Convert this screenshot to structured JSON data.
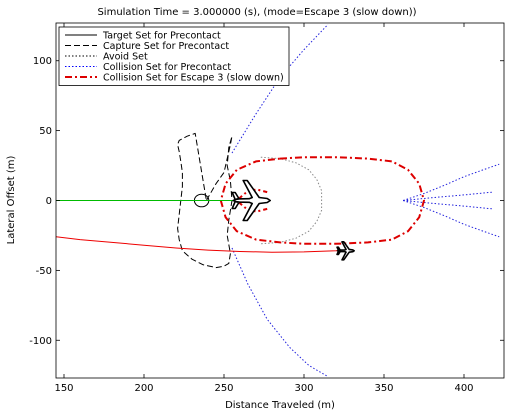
{
  "chart_data": {
    "type": "line",
    "title": "Simulation Time = 3.000000 (s), (mode=Escape 3 (slow down))",
    "xlabel": "Distance Traveled (m)",
    "ylabel": "Lateral Offset (m)",
    "xlim": [
      145,
      425
    ],
    "ylim": [
      -127,
      127
    ],
    "xticks": [
      150,
      200,
      250,
      300,
      350,
      400
    ],
    "yticks": [
      -100,
      -50,
      0,
      50,
      100
    ],
    "grid": false,
    "legend_position": "top-left",
    "legend": [
      {
        "label": "Target Set for Precontact",
        "style": "solid",
        "color": "#000000"
      },
      {
        "label": "Capture Set for Precontact",
        "style": "dashed",
        "color": "#000000"
      },
      {
        "label": "Avoid Set",
        "style": "dotted",
        "color": "#000000"
      },
      {
        "label": "Collision Set for Precontact",
        "style": "dotted",
        "color": "#0000ff"
      },
      {
        "label": "Collision Set for Escape 3 (slow down)",
        "style": "dashdot",
        "color": "#dd0000"
      }
    ],
    "series": [
      {
        "name": "Target Set for Precontact",
        "shape": "circle",
        "center": [
          236,
          0
        ],
        "radius": 4.5,
        "color": "#000000"
      },
      {
        "name": "Capture Set for Precontact",
        "color": "#000000",
        "x": [
          239,
          245,
          250,
          252,
          254,
          255,
          253,
          252,
          254,
          255,
          253,
          252,
          254,
          253,
          250,
          245,
          237,
          230,
          224,
          222,
          221,
          222,
          223,
          224,
          224,
          223,
          222,
          221,
          222,
          227,
          232,
          239
        ],
        "y": [
          0,
          12,
          20,
          30,
          40,
          46,
          38,
          25,
          14,
          0,
          -14,
          -25,
          -38,
          -45,
          -47,
          -48,
          -46,
          -42,
          -36,
          -28,
          -20,
          -10,
          0,
          10,
          20,
          28,
          35,
          40,
          43,
          46,
          48,
          0
        ]
      },
      {
        "name": "Avoid Set",
        "color": "#888888",
        "x": [
          273,
          285,
          295,
          303,
          308,
          311,
          311,
          308,
          303,
          295,
          285,
          273
        ],
        "y": [
          31,
          30,
          27,
          22,
          15,
          7,
          -7,
          -15,
          -22,
          -27,
          -30,
          -31
        ]
      },
      {
        "name": "Collision Set for Precontact",
        "color": "#2222dd",
        "x": [
          255,
          265,
          277,
          291,
          303,
          315
        ],
        "y": [
          -34,
          -60,
          -85,
          -105,
          -118,
          -126
        ]
      },
      {
        "name": "Collision Set for Precontact",
        "color": "#2222dd",
        "x": [
          255,
          270,
          285,
          300,
          315
        ],
        "y": [
          34,
          62,
          88,
          108,
          126
        ]
      },
      {
        "name": "Collision Set for Precontact",
        "color": "#2222dd",
        "x": [
          362,
          375,
          388,
          400,
          412,
          422
        ],
        "y": [
          0,
          5,
          11,
          17,
          22,
          26
        ]
      },
      {
        "name": "Collision Set for Precontact",
        "color": "#2222dd",
        "x": [
          362,
          375,
          388,
          400,
          412,
          422
        ],
        "y": [
          0,
          -5,
          -11,
          -17,
          -22,
          -26
        ]
      },
      {
        "name": "Collision Set for Precontact",
        "color": "#2222dd",
        "x": [
          362,
          380,
          400,
          418
        ],
        "y": [
          0,
          2,
          4,
          6
        ]
      },
      {
        "name": "Collision Set for Precontact",
        "color": "#2222dd",
        "x": [
          362,
          380,
          400,
          418
        ],
        "y": [
          0,
          -2,
          -4,
          -6
        ]
      },
      {
        "name": "Collision Set for Escape 3 (slow down)",
        "color": "#dd0000",
        "x": [
          285,
          300,
          320,
          340,
          355,
          365,
          372,
          375,
          372,
          365,
          355,
          340,
          320,
          300,
          285,
          270,
          258,
          251,
          248,
          251,
          258,
          270,
          285
        ],
        "y": [
          30,
          31,
          31,
          30,
          28,
          22,
          12,
          0,
          -12,
          -22,
          -28,
          -30,
          -31,
          -31,
          -30,
          -28,
          -22,
          -12,
          0,
          12,
          22,
          28,
          30
        ]
      },
      {
        "name": "Collision Set for Escape 3 (slow down)",
        "color": "#dd0000",
        "x": [
          258,
          263,
          270,
          277
        ],
        "y": [
          0,
          5,
          8,
          6
        ]
      },
      {
        "name": "Collision Set for Escape 3 (slow down)",
        "color": "#dd0000",
        "x": [
          258,
          263,
          270,
          277
        ],
        "y": [
          0,
          -5,
          -8,
          -6
        ]
      },
      {
        "name": "tanker trajectory",
        "color": "#00bb00",
        "x": [
          145,
          256
        ],
        "y": [
          0,
          0
        ]
      },
      {
        "name": "receiver trajectory",
        "color": "#ee0000",
        "x": [
          145,
          160,
          180,
          200,
          220,
          240,
          260,
          280,
          300,
          320,
          326
        ],
        "y": [
          -26,
          -28,
          -30,
          -32,
          -34,
          -35.5,
          -36.5,
          -37,
          -36.8,
          -36,
          -35.5
        ]
      }
    ],
    "aircraft": [
      {
        "name": "tanker-aircraft",
        "x": 267,
        "y": 0,
        "scale": 1.0
      },
      {
        "name": "receiver-aircraft",
        "x": 326,
        "y": -36,
        "scale": 0.45
      }
    ]
  }
}
